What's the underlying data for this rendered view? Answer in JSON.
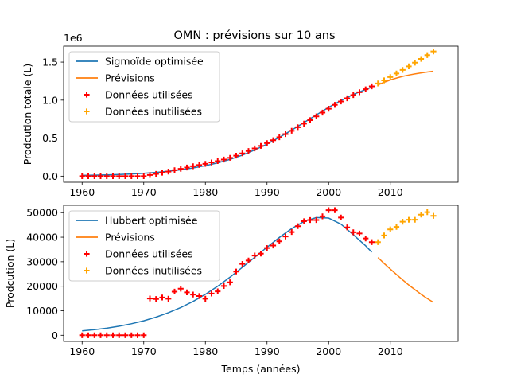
{
  "title": "OMN : prévisions sur 10 ans",
  "colors": {
    "fit": "#1f77b4",
    "forecast": "#ff7f0e",
    "used": "#ff0000",
    "unused": "#ffa500"
  },
  "chart_data": [
    {
      "type": "line",
      "ylabel": "Prodcution totale (L)",
      "xlabel": "",
      "offset_label": "1e6",
      "xlim": [
        1957,
        2021
      ],
      "ylim": [
        -80000,
        1710000
      ],
      "xticks": [
        1960,
        1970,
        1980,
        1990,
        2000,
        2010
      ],
      "yticks": [
        0,
        500000,
        1000000,
        1500000
      ],
      "ytick_labels": [
        "0.0",
        "0.5",
        "1.0",
        "1.5"
      ],
      "legend_position": "upper-left",
      "series": [
        {
          "name": "Sigmoïde optimisée",
          "kind": "line",
          "color": "#1f77b4",
          "x": [
            1960,
            1962,
            1964,
            1966,
            1968,
            1970,
            1972,
            1974,
            1976,
            1978,
            1980,
            1982,
            1984,
            1986,
            1988,
            1990,
            1992,
            1994,
            1996,
            1998,
            2000,
            2002,
            2004,
            2006,
            2007
          ],
          "y": [
            10000,
            13000,
            17000,
            22000,
            29000,
            38000,
            50000,
            65000,
            84000,
            108000,
            138000,
            175000,
            221000,
            277000,
            344000,
            422000,
            510000,
            605000,
            705000,
            806000,
            905000,
            995000,
            1075000,
            1140000,
            1170000
          ]
        },
        {
          "name": "Prévisions",
          "kind": "line",
          "color": "#ff7f0e",
          "x": [
            2008,
            2009,
            2010,
            2011,
            2012,
            2013,
            2014,
            2015,
            2016,
            2017
          ],
          "y": [
            1200000,
            1235000,
            1265000,
            1290000,
            1312000,
            1330000,
            1345000,
            1358000,
            1370000,
            1380000
          ]
        },
        {
          "name": "Données utilisées",
          "kind": "scatter",
          "marker": "+",
          "color": "#ff0000",
          "x": [
            1960,
            1961,
            1962,
            1963,
            1964,
            1965,
            1966,
            1967,
            1968,
            1969,
            1970,
            1971,
            1972,
            1973,
            1974,
            1975,
            1976,
            1977,
            1978,
            1979,
            1980,
            1981,
            1982,
            1983,
            1984,
            1985,
            1986,
            1987,
            1988,
            1989,
            1990,
            1991,
            1992,
            1993,
            1994,
            1995,
            1996,
            1997,
            1998,
            1999,
            2000,
            2001,
            2002,
            2003,
            2004,
            2005,
            2006,
            2007
          ],
          "y": [
            0,
            0,
            0,
            0,
            0,
            0,
            0,
            0,
            0,
            0,
            0,
            15000,
            30000,
            45000,
            60000,
            78000,
            97000,
            114000,
            131000,
            147000,
            162000,
            180000,
            198000,
            218000,
            241000,
            270000,
            300000,
            331000,
            365000,
            398000,
            434000,
            472000,
            511000,
            553000,
            597000,
            644000,
            691000,
            737000,
            786000,
            836000,
            887000,
            938000,
            982000,
            1024000,
            1066000,
            1104000,
            1143000,
            1181000
          ]
        },
        {
          "name": "Données inutilisées",
          "kind": "scatter",
          "marker": "+",
          "color": "#ffa500",
          "x": [
            2008,
            2009,
            2010,
            2011,
            2012,
            2013,
            2014,
            2015,
            2016,
            2017
          ],
          "y": [
            1219000,
            1260000,
            1303000,
            1350000,
            1397000,
            1444000,
            1493000,
            1542000,
            1592000,
            1640000
          ]
        }
      ]
    },
    {
      "type": "line",
      "ylabel": "Prodcution (L)",
      "xlabel": "Temps (années)",
      "xlim": [
        1957,
        2021
      ],
      "ylim": [
        -2500,
        53000
      ],
      "xticks": [
        1960,
        1970,
        1980,
        1990,
        2000,
        2010
      ],
      "yticks": [
        0,
        10000,
        20000,
        30000,
        40000,
        50000
      ],
      "ytick_labels": [
        "0",
        "10000",
        "20000",
        "30000",
        "40000",
        "50000"
      ],
      "legend_position": "upper-left",
      "series": [
        {
          "name": "Hubbert optimisée",
          "kind": "line",
          "color": "#1f77b4",
          "x": [
            1960,
            1962,
            1964,
            1966,
            1968,
            1970,
            1972,
            1974,
            1976,
            1978,
            1980,
            1982,
            1984,
            1986,
            1988,
            1990,
            1992,
            1994,
            1996,
            1998,
            2000,
            2002,
            2004,
            2006,
            2007
          ],
          "y": [
            1800,
            2300,
            2900,
            3700,
            4700,
            5900,
            7400,
            9200,
            11300,
            13800,
            16700,
            20000,
            23700,
            27700,
            31800,
            35900,
            39900,
            43500,
            46400,
            48000,
            47800,
            45300,
            41000,
            36500,
            33900
          ]
        },
        {
          "name": "Prévisions",
          "kind": "line",
          "color": "#ff7f0e",
          "x": [
            2008,
            2009,
            2010,
            2011,
            2012,
            2013,
            2014,
            2015,
            2016,
            2017
          ],
          "y": [
            31700,
            29300,
            27000,
            24800,
            22600,
            20500,
            18600,
            16700,
            15000,
            13400
          ]
        },
        {
          "name": "Données utilisées",
          "kind": "scatter",
          "marker": "+",
          "color": "#ff0000",
          "x": [
            1960,
            1961,
            1962,
            1963,
            1964,
            1965,
            1966,
            1967,
            1968,
            1969,
            1970,
            1971,
            1972,
            1973,
            1974,
            1975,
            1976,
            1977,
            1978,
            1979,
            1980,
            1981,
            1982,
            1983,
            1984,
            1985,
            1986,
            1987,
            1988,
            1989,
            1990,
            1991,
            1992,
            1993,
            1994,
            1995,
            1996,
            1997,
            1998,
            1999,
            2000,
            2001,
            2002,
            2003,
            2004,
            2005,
            2006,
            2007
          ],
          "y": [
            0,
            0,
            0,
            0,
            0,
            0,
            0,
            0,
            0,
            0,
            0,
            15000,
            14800,
            15400,
            14900,
            17800,
            19000,
            17500,
            16600,
            16000,
            14900,
            17000,
            17900,
            20100,
            21600,
            26000,
            29100,
            30500,
            32500,
            33300,
            35600,
            36600,
            38300,
            40300,
            42100,
            44500,
            46500,
            47000,
            47000,
            48500,
            51000,
            51000,
            48000,
            44000,
            42000,
            41500,
            39500,
            38000
          ]
        },
        {
          "name": "Données inutilisées",
          "kind": "scatter",
          "marker": "+",
          "color": "#ffa500",
          "x": [
            2008,
            2009,
            2010,
            2011,
            2012,
            2013,
            2014,
            2015,
            2016,
            2017
          ],
          "y": [
            38000,
            40700,
            43200,
            44200,
            46300,
            47100,
            47100,
            49200,
            50200,
            48700
          ]
        }
      ]
    }
  ]
}
